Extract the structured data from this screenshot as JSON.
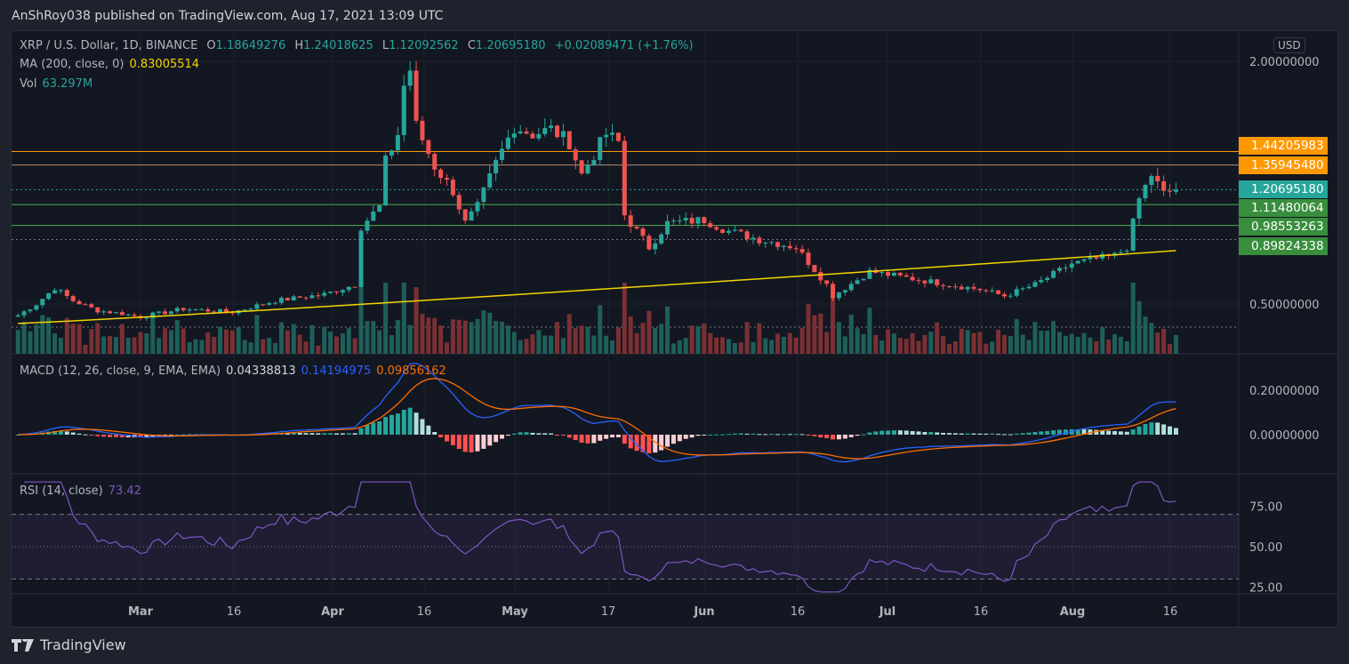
{
  "header": {
    "published": "AnShRoy038 published on TradingView.com, Aug 17, 2021 13:09 UTC"
  },
  "legend": {
    "symbol": "XRP / U.S. Dollar, 1D, BINANCE",
    "o_label": "O",
    "o": "1.18649276",
    "h_label": "H",
    "h": "1.24018625",
    "l_label": "L",
    "l": "1.12092562",
    "c_label": "C",
    "c": "1.20695180",
    "change": "+0.02089471 (+1.76%)",
    "ma_label": "MA (200, close, 0)",
    "ma": "0.83005514",
    "vol_label": "Vol",
    "vol": "63.297M",
    "macd_label": "MACD (12, 26, close, 9, EMA, EMA)",
    "macd_hist": "0.04338813",
    "macd": "0.14194975",
    "macd_signal": "0.09856162",
    "rsi_label": "RSI (14, close)",
    "rsi": "73.42"
  },
  "price_axis": {
    "currency": "USD",
    "ticks": [
      "2.00000000",
      "0.50000000"
    ],
    "macd_ticks": [
      "0.20000000",
      "0.00000000"
    ],
    "rsi_ticks": [
      "75.00",
      "50.00",
      "25.00"
    ]
  },
  "price_tags": [
    {
      "value": "1.44205983",
      "color": "#ff9800"
    },
    {
      "value": "1.35945480",
      "color": "#ff9800"
    },
    {
      "value": "1.20695180",
      "color": "#26a69a"
    },
    {
      "value": "1.11480064",
      "color": "#388e3c"
    },
    {
      "value": "0.98553263",
      "color": "#388e3c"
    },
    {
      "value": "0.89824338",
      "color": "#388e3c"
    }
  ],
  "time_axis": [
    "Mar",
    "16",
    "Apr",
    "16",
    "May",
    "17",
    "Jun",
    "16",
    "Jul",
    "16",
    "Aug",
    "16"
  ],
  "footer": {
    "brand": "TradingView"
  },
  "chart_data": {
    "type": "candlestick",
    "title": "XRP / U.S. Dollar, 1D, BINANCE",
    "ylim": [
      0.5,
      2.0
    ],
    "x_start": "Feb 9 2021",
    "x_end": "Aug 17 2021",
    "close_keypoints": [
      [
        0,
        0.43
      ],
      [
        3,
        0.5
      ],
      [
        6,
        0.6
      ],
      [
        9,
        0.52
      ],
      [
        13,
        0.46
      ],
      [
        17,
        0.44
      ],
      [
        20,
        0.42
      ],
      [
        27,
        0.47
      ],
      [
        35,
        0.45
      ],
      [
        42,
        0.52
      ],
      [
        50,
        0.56
      ],
      [
        55,
        0.62
      ],
      [
        56,
        0.98
      ],
      [
        59,
        1.1
      ],
      [
        60,
        1.38
      ],
      [
        62,
        1.55
      ],
      [
        63,
        1.85
      ],
      [
        64,
        1.95
      ],
      [
        65,
        1.6
      ],
      [
        68,
        1.35
      ],
      [
        71,
        1.2
      ],
      [
        73,
        1.0
      ],
      [
        75,
        1.1
      ],
      [
        78,
        1.37
      ],
      [
        81,
        1.6
      ],
      [
        84,
        1.55
      ],
      [
        87,
        1.58
      ],
      [
        90,
        1.5
      ],
      [
        92,
        1.3
      ],
      [
        96,
        1.55
      ],
      [
        98,
        1.5
      ],
      [
        99,
        1.05
      ],
      [
        103,
        0.85
      ],
      [
        106,
        1.0
      ],
      [
        112,
        1.02
      ],
      [
        116,
        0.95
      ],
      [
        121,
        0.9
      ],
      [
        127,
        0.85
      ],
      [
        132,
        0.62
      ],
      [
        133,
        0.55
      ],
      [
        139,
        0.7
      ],
      [
        147,
        0.65
      ],
      [
        157,
        0.59
      ],
      [
        161,
        0.55
      ],
      [
        166,
        0.62
      ],
      [
        172,
        0.75
      ],
      [
        179,
        0.8
      ],
      [
        181,
        0.85
      ],
      [
        182,
        1.0
      ],
      [
        183,
        1.15
      ],
      [
        185,
        1.3
      ],
      [
        187,
        1.18
      ],
      [
        189,
        1.207
      ]
    ],
    "horizontal_levels": [
      1.44205983,
      1.3594548,
      1.2069518,
      1.11480064,
      0.98553263,
      0.89824338
    ],
    "ma_period": 200,
    "macd_params": [
      12,
      26,
      9
    ],
    "rsi_period": 14
  }
}
